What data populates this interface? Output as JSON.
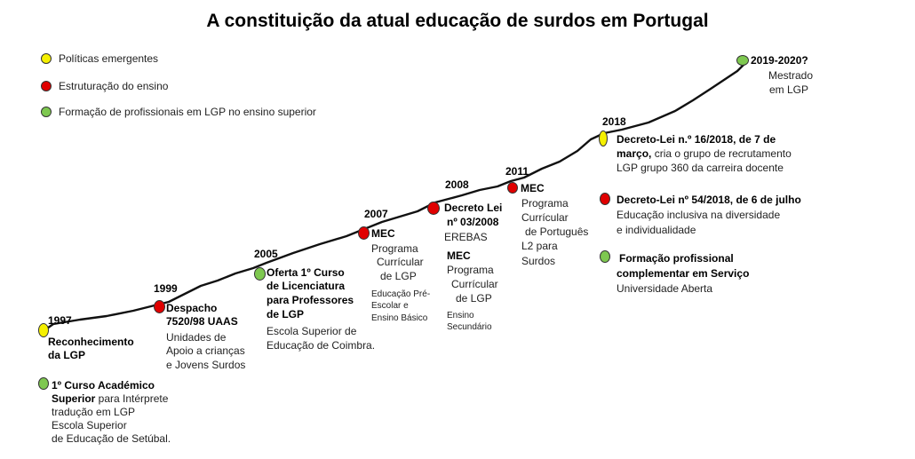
{
  "title": "A constituição da atual educação de surdos em Portugal",
  "colors": {
    "yellow": "#f5f000",
    "red": "#e00000",
    "green": "#7ec850",
    "line": "#111111"
  },
  "legend": [
    {
      "label": "Políticas emergentes",
      "color": "yellow"
    },
    {
      "label": "Estruturação do ensino",
      "color": "red"
    },
    {
      "label": "Formação de profissionais em LGP no ensino superior",
      "color": "green"
    }
  ],
  "years": {
    "y1997": "1997",
    "y1999": "1999",
    "y2005": "2005",
    "y2007": "2007",
    "y2008": "2008",
    "y2011": "2011",
    "y2018": "2018",
    "y2019": "2019-2020?"
  },
  "events": {
    "e1997a": {
      "l1": "Reconhecimento",
      "l2": "da LGP"
    },
    "e1997b": {
      "l1": "1º Curso Académico",
      "l2b": "Superior",
      "l2": " para Intérprete",
      "l3": "tradução em LGP",
      "l4": "Escola Superior",
      "l5": "de Educação de Setúbal."
    },
    "e1999": {
      "l1": "Despacho",
      "l2": "7520/98 UAAS",
      "l3": "Unidades de",
      "l4": "Apoio  a crianças",
      "l5": "e Jovens  Surdos"
    },
    "e2005": {
      "l1": "Oferta 1º Curso",
      "l2": "de Licenciatura",
      "l3": "para Professores",
      "l4": "de LGP",
      "l5": "Escola Superior de",
      "l6": "Educação de Coimbra."
    },
    "e2007": {
      "l1": "MEC",
      "l2": "Programa",
      "l3": "Currícular",
      "l4": "de LGP",
      "l5": "Educação Pré-",
      "l6": "Escolar e",
      "l7": "Ensino Básico"
    },
    "e2008a": {
      "l1": "Decreto Lei",
      "l2": "nº 03/2008",
      "l3": "EREBAS"
    },
    "e2008b": {
      "l1": "MEC",
      "l2": "Programa",
      "l3": "Currícular",
      "l4": "de LGP",
      "l5": "Ensino",
      "l6": "Secundário"
    },
    "e2011": {
      "l1": "MEC",
      "l2": "Programa",
      "l3": "Currícular",
      "l4": "de Português",
      "l5": "L2 para",
      "l6": "Surdos"
    },
    "e2018a": {
      "l1": "Decreto-Lei  n.º 16/2018,  de 7 de",
      "l2b": "março,",
      "l2": " cria o grupo de recrutamento",
      "l3": "LGP grupo 360  da carreira docente"
    },
    "e2018b": {
      "l1": "Decreto-Lei nº 54/2018, de 6 de julho",
      "l2": "Educação inclusiva na diversidade",
      "l3": " e individualidade"
    },
    "e2018c": {
      "l1": "Formação profissional",
      "l2": "complementar em Serviço",
      "l3": "Universidade Aberta"
    },
    "e2019": {
      "l1": "Mestrado",
      "l2": "em LGP"
    }
  }
}
